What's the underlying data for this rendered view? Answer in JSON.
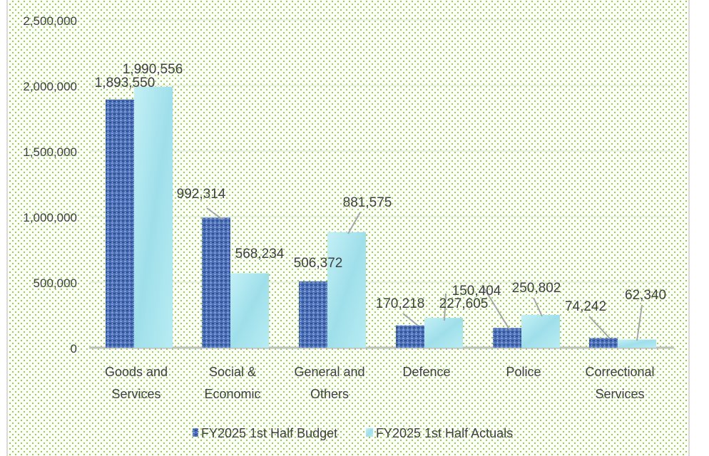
{
  "chart_data": {
    "type": "bar",
    "title": "",
    "xlabel": "",
    "ylabel": "",
    "ylim": [
      0,
      2500000
    ],
    "yticks": [
      "0",
      "500,000",
      "1,000,000",
      "1,500,000",
      "2,000,000",
      "2,500,000"
    ],
    "ytick_values": [
      0,
      500000,
      1000000,
      1500000,
      2000000,
      2500000
    ],
    "grid": true,
    "legend_position": "bottom",
    "categories": [
      [
        "Goods and",
        "Services"
      ],
      [
        "Social &",
        "Economic"
      ],
      [
        "General and",
        "Others"
      ],
      [
        "Defence"
      ],
      [
        "Police"
      ],
      [
        "Correctional",
        "Services"
      ]
    ],
    "series": [
      {
        "name": "FY2025 1st Half Budget",
        "color": "#4a6fb5",
        "values": [
          1893550,
          992314,
          506372,
          170218,
          150404,
          74242
        ],
        "labels": [
          "1,893,550",
          "992,314",
          "506,372",
          "170,218",
          "150,404",
          "74,242"
        ]
      },
      {
        "name": "FY2025 1st Half Actuals",
        "color": "#a8e4ef",
        "values": [
          1990556,
          568234,
          881575,
          227605,
          250802,
          62340
        ],
        "labels": [
          "1,990,556",
          "568,234",
          "881,575",
          "227,605",
          "250,802",
          "62,340"
        ]
      }
    ],
    "background": "#7ed321"
  }
}
